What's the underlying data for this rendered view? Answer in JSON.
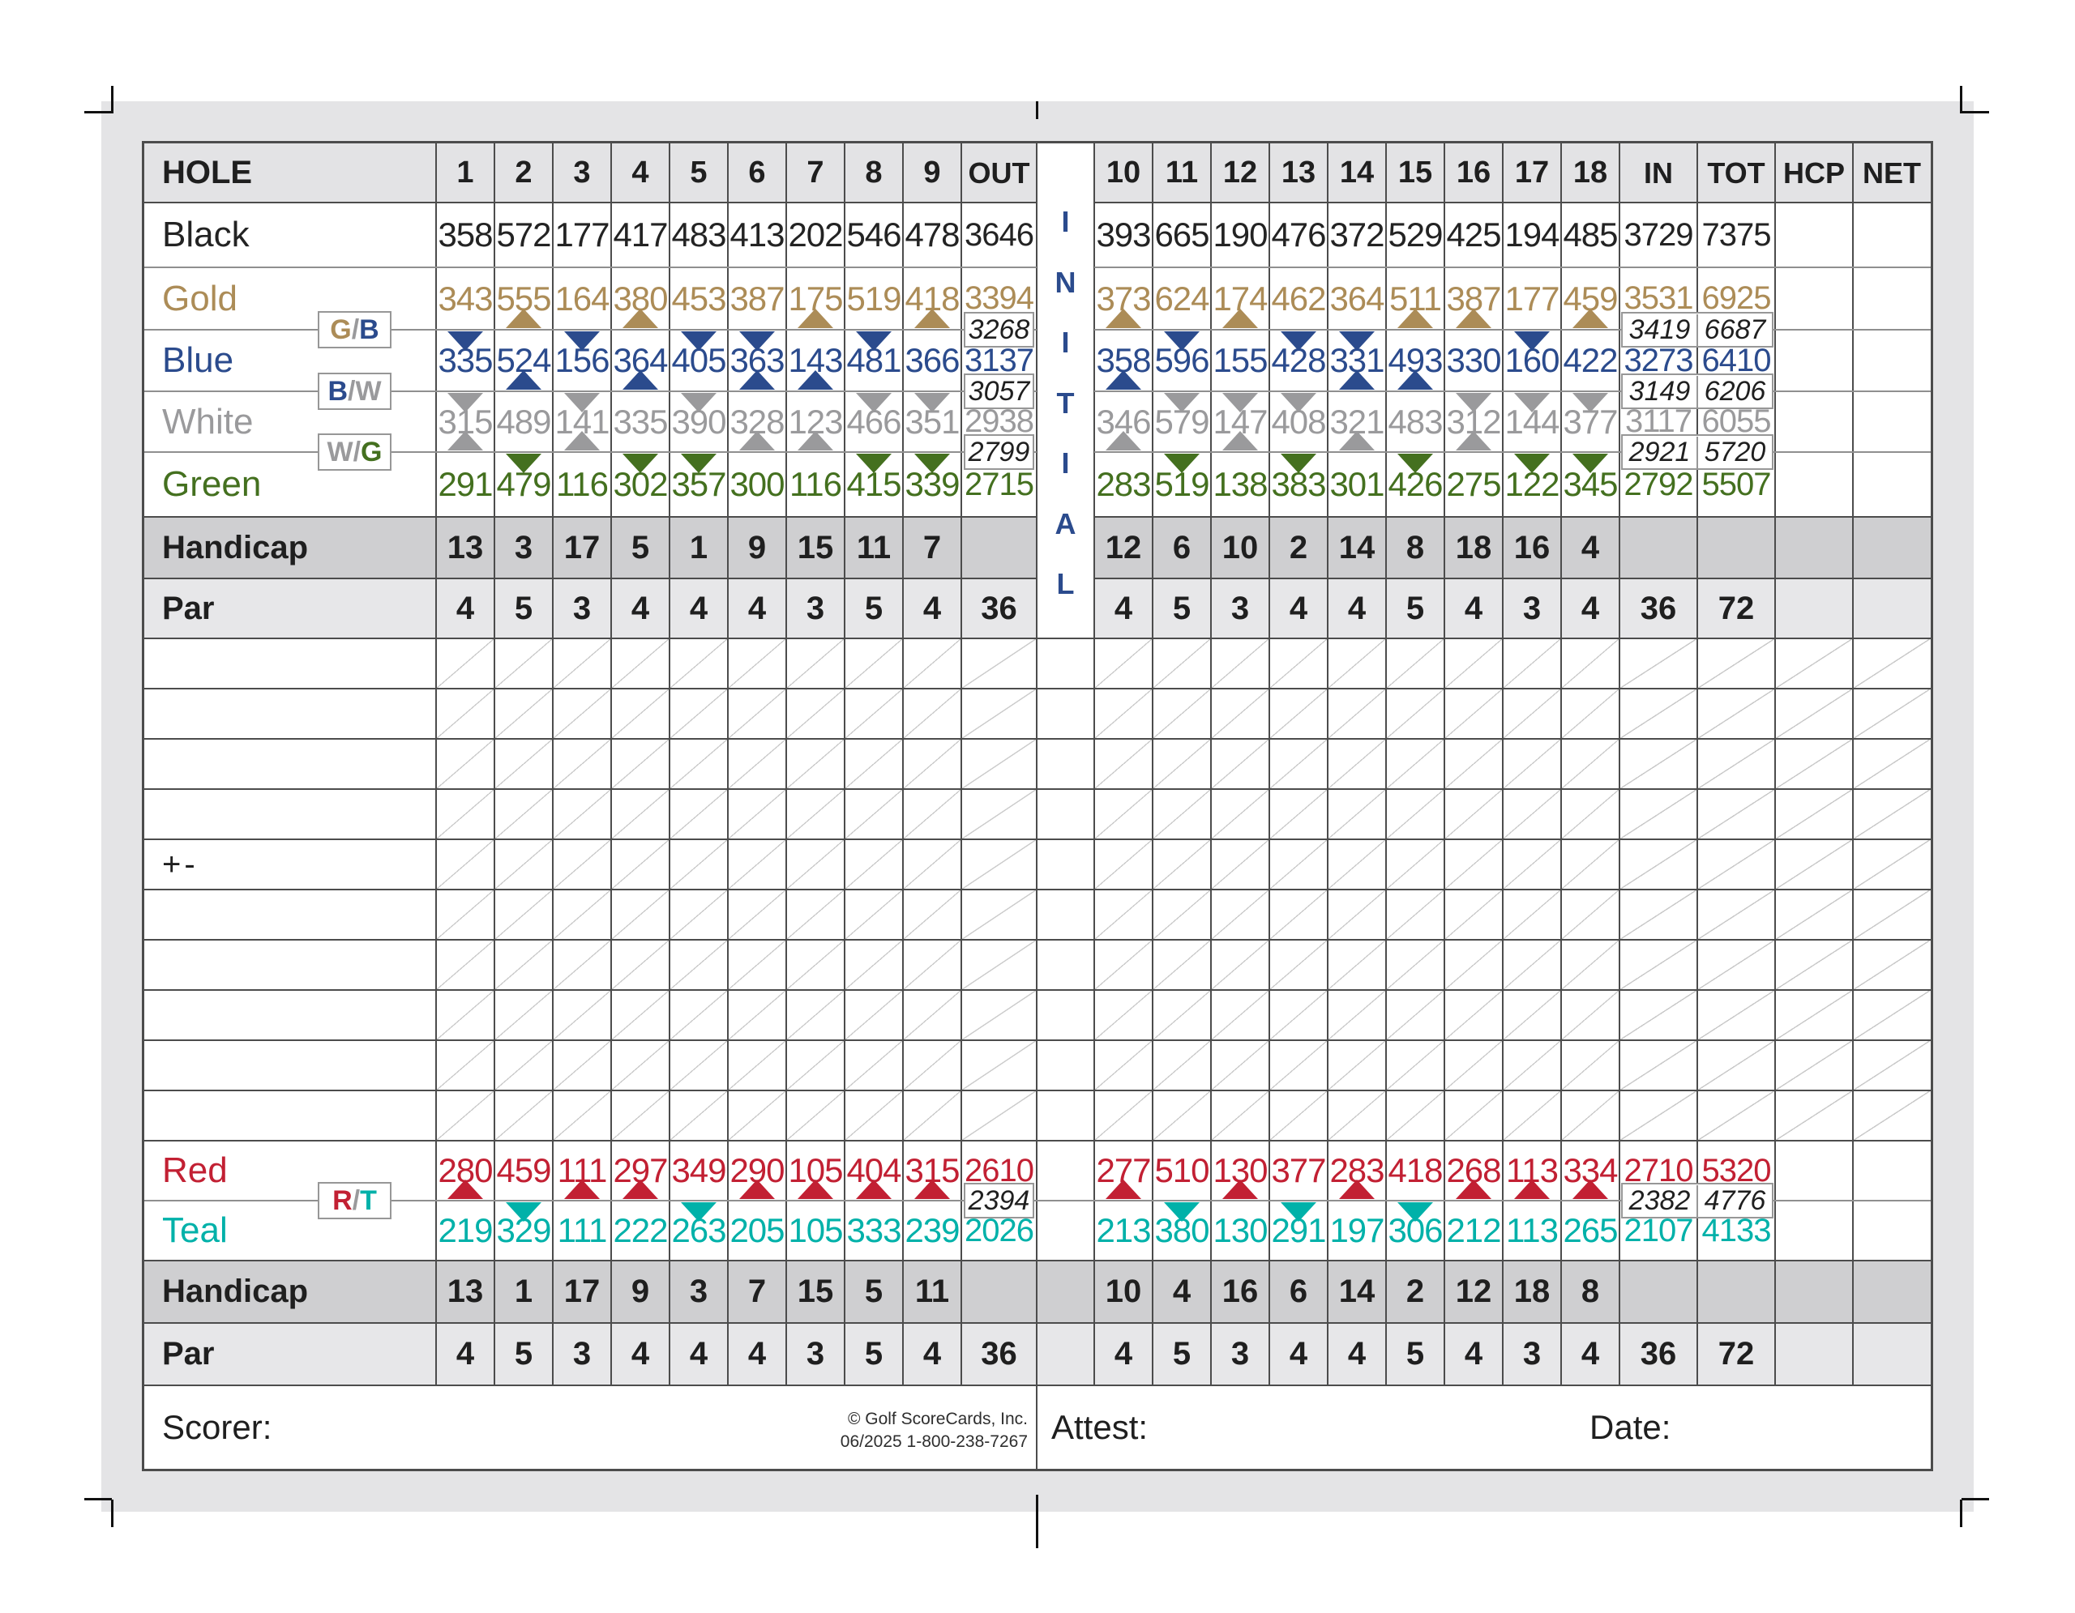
{
  "card": {
    "header": {
      "hole_label": "HOLE",
      "front": [
        "1",
        "2",
        "3",
        "4",
        "5",
        "6",
        "7",
        "8",
        "9"
      ],
      "out": "OUT",
      "back": [
        "10",
        "11",
        "12",
        "13",
        "14",
        "15",
        "16",
        "17",
        "18"
      ],
      "in": "IN",
      "tot": "TOT",
      "hcp": "HCP",
      "net": "NET"
    },
    "initial_letters": "INITIAL",
    "colors": {
      "black": "#232323",
      "gold": "#ac8c57",
      "blue": "#2b4b8d",
      "white": "#9a9a9c",
      "green": "#44701f",
      "red": "#c22033",
      "teal": "#00b1a9",
      "slash": "#9a9a9c",
      "initial": "#2b4b8d",
      "grid_dark": "#4c4c4c",
      "grid_light": "#8f8f8f",
      "row_header_bg": "#e3e3e5",
      "row_handicap_bg": "#cfcfd1",
      "row_par_bg": "#e7e7e9",
      "card_bg": "#e4e4e6",
      "diagonal": "#c9c9c9"
    },
    "tees_top": [
      {
        "name": "Black",
        "color": "black",
        "front": [
          "358",
          "572",
          "177",
          "417",
          "483",
          "413",
          "202",
          "546",
          "478"
        ],
        "out": "3646",
        "back": [
          "393",
          "665",
          "190",
          "476",
          "372",
          "529",
          "425",
          "194",
          "485"
        ],
        "in": "3729",
        "tot": "7375"
      },
      {
        "name": "Gold",
        "color": "gold",
        "front": [
          "343",
          "555",
          "164",
          "380",
          "453",
          "387",
          "175",
          "519",
          "418"
        ],
        "out": "3394",
        "back": [
          "373",
          "624",
          "174",
          "462",
          "364",
          "511",
          "387",
          "177",
          "459"
        ],
        "in": "3531",
        "tot": "6925"
      },
      {
        "name": "Blue",
        "color": "blue",
        "front": [
          "335",
          "524",
          "156",
          "364",
          "405",
          "363",
          "143",
          "481",
          "366"
        ],
        "out": "3137",
        "back": [
          "358",
          "596",
          "155",
          "428",
          "331",
          "493",
          "330",
          "160",
          "422"
        ],
        "in": "3273",
        "tot": "6410"
      },
      {
        "name": "White",
        "color": "white",
        "front": [
          "315",
          "489",
          "141",
          "335",
          "390",
          "328",
          "123",
          "466",
          "351"
        ],
        "out": "2938",
        "back": [
          "346",
          "579",
          "147",
          "408",
          "321",
          "483",
          "312",
          "144",
          "377"
        ],
        "in": "3117",
        "tot": "6055"
      },
      {
        "name": "Green",
        "color": "green",
        "front": [
          "291",
          "479",
          "116",
          "302",
          "357",
          "300",
          "116",
          "415",
          "339"
        ],
        "out": "2715",
        "back": [
          "283",
          "519",
          "138",
          "383",
          "301",
          "426",
          "275",
          "122",
          "345"
        ],
        "in": "2792",
        "tot": "5507"
      }
    ],
    "combos_top": [
      {
        "label_parts": [
          {
            "ch": "G",
            "color": "gold"
          },
          {
            "ch": "/",
            "color": "slash"
          },
          {
            "ch": "B",
            "color": "blue"
          }
        ],
        "out": "3268",
        "in": "3419",
        "tot": "6687",
        "up_color": "gold",
        "down_color": "blue",
        "front_up": [
          2,
          4,
          7,
          9
        ],
        "front_down": [
          1,
          3,
          5,
          6,
          8
        ],
        "back_up": [
          10,
          12,
          15,
          16,
          18
        ],
        "back_down": [
          11,
          13,
          14,
          17
        ]
      },
      {
        "label_parts": [
          {
            "ch": "B",
            "color": "blue"
          },
          {
            "ch": "/",
            "color": "slash"
          },
          {
            "ch": "W",
            "color": "white"
          }
        ],
        "out": "3057",
        "in": "3149",
        "tot": "6206",
        "up_color": "blue",
        "down_color": "white",
        "front_up": [
          2,
          4,
          6,
          7
        ],
        "front_down": [
          1,
          3,
          5,
          8,
          9
        ],
        "back_up": [
          10,
          14,
          15
        ],
        "back_down": [
          11,
          12,
          13,
          16,
          17,
          18
        ]
      },
      {
        "label_parts": [
          {
            "ch": "W",
            "color": "white"
          },
          {
            "ch": "/",
            "color": "slash"
          },
          {
            "ch": "G",
            "color": "green"
          }
        ],
        "out": "2799",
        "in": "2921",
        "tot": "5720",
        "up_color": "white",
        "down_color": "green",
        "front_up": [
          1,
          3,
          6,
          7
        ],
        "front_down": [
          2,
          4,
          5,
          8,
          9
        ],
        "back_up": [
          10,
          12,
          14,
          16
        ],
        "back_down": [
          11,
          13,
          15,
          17,
          18
        ]
      }
    ],
    "handicap_top": {
      "label": "Handicap",
      "front": [
        "13",
        "3",
        "17",
        "5",
        "1",
        "9",
        "15",
        "11",
        "7"
      ],
      "back": [
        "12",
        "6",
        "10",
        "2",
        "14",
        "8",
        "18",
        "16",
        "4"
      ]
    },
    "par_top": {
      "label": "Par",
      "front": [
        "4",
        "5",
        "3",
        "4",
        "4",
        "4",
        "3",
        "5",
        "4"
      ],
      "out": "36",
      "back": [
        "4",
        "5",
        "3",
        "4",
        "4",
        "5",
        "4",
        "3",
        "4"
      ],
      "in": "36",
      "tot": "72"
    },
    "score_rows": {
      "count": 10,
      "plus_minus_row": 5,
      "plus_minus_label": "+-"
    },
    "tees_bottom": [
      {
        "name": "Red",
        "color": "red",
        "front": [
          "280",
          "459",
          "111",
          "297",
          "349",
          "290",
          "105",
          "404",
          "315"
        ],
        "out": "2610",
        "back": [
          "277",
          "510",
          "130",
          "377",
          "283",
          "418",
          "268",
          "113",
          "334"
        ],
        "in": "2710",
        "tot": "5320"
      },
      {
        "name": "Teal",
        "color": "teal",
        "front": [
          "219",
          "329",
          "111",
          "222",
          "263",
          "205",
          "105",
          "333",
          "239"
        ],
        "out": "2026",
        "back": [
          "213",
          "380",
          "130",
          "291",
          "197",
          "306",
          "212",
          "113",
          "265"
        ],
        "in": "2107",
        "tot": "4133"
      }
    ],
    "combo_bottom": {
      "label_parts": [
        {
          "ch": "R",
          "color": "red"
        },
        {
          "ch": "/",
          "color": "slash"
        },
        {
          "ch": "T",
          "color": "teal"
        }
      ],
      "out": "2394",
      "in": "2382",
      "tot": "4776",
      "up_color": "red",
      "down_color": "teal",
      "front_up": [
        1,
        3,
        4,
        6,
        7,
        8,
        9
      ],
      "front_down": [
        2,
        5
      ],
      "back_up": [
        10,
        12,
        14,
        16,
        17,
        18
      ],
      "back_down": [
        11,
        13,
        15
      ]
    },
    "handicap_bottom": {
      "label": "Handicap",
      "front": [
        "13",
        "1",
        "17",
        "9",
        "3",
        "7",
        "15",
        "5",
        "11"
      ],
      "back": [
        "10",
        "4",
        "16",
        "6",
        "14",
        "2",
        "12",
        "18",
        "8"
      ]
    },
    "par_bottom": {
      "label": "Par",
      "front": [
        "4",
        "5",
        "3",
        "4",
        "4",
        "4",
        "3",
        "5",
        "4"
      ],
      "out": "36",
      "back": [
        "4",
        "5",
        "3",
        "4",
        "4",
        "5",
        "4",
        "3",
        "4"
      ],
      "in": "36",
      "tot": "72"
    },
    "footer": {
      "scorer_label": "Scorer:",
      "attest_label": "Attest:",
      "date_label": "Date:",
      "copyright_line1": "© Golf ScoreCards, Inc.",
      "copyright_line2": "06/2025  1-800-238-7267"
    }
  }
}
